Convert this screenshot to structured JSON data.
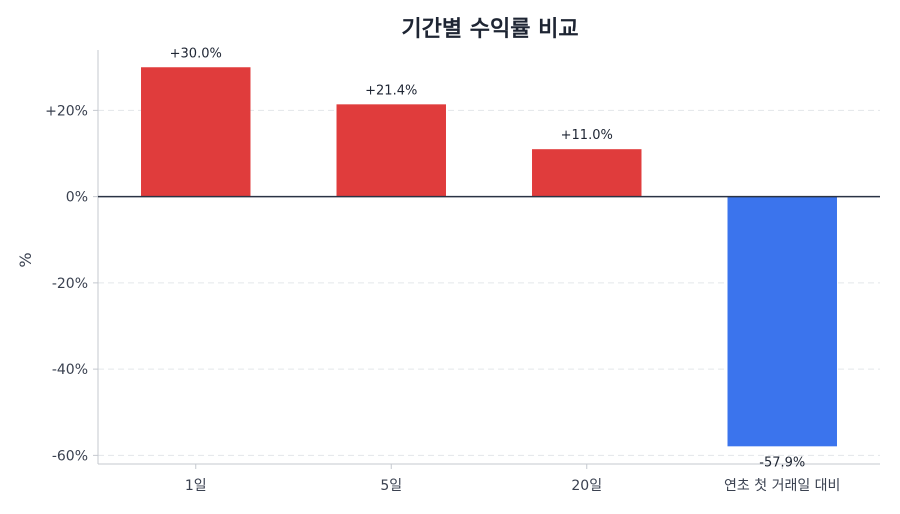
{
  "chart_data": {
    "type": "bar",
    "title": "기간별 수익률 비교",
    "xlabel": "",
    "ylabel": "%",
    "categories": [
      "1일",
      "5일",
      "20일",
      "연초 첫 거래일 대비"
    ],
    "values": [
      30.0,
      21.4,
      11.0,
      -57.9
    ],
    "value_labels": [
      "+30.0%",
      "+21.4%",
      "+11.0%",
      "-57.9%"
    ],
    "ylim": [
      -62,
      34
    ],
    "yticks": [
      20,
      0,
      -20,
      -40,
      -60
    ],
    "ytick_labels": [
      "+20%",
      "0%",
      "-20%",
      "-40%",
      "-60%"
    ],
    "grid": "horizontal dashed",
    "colors": {
      "positive": "#e03c3c",
      "negative": "#3b74ed",
      "zero_line": "#2a3344",
      "axis": "#c4c8cf",
      "grid": "#e3e6ea"
    }
  }
}
